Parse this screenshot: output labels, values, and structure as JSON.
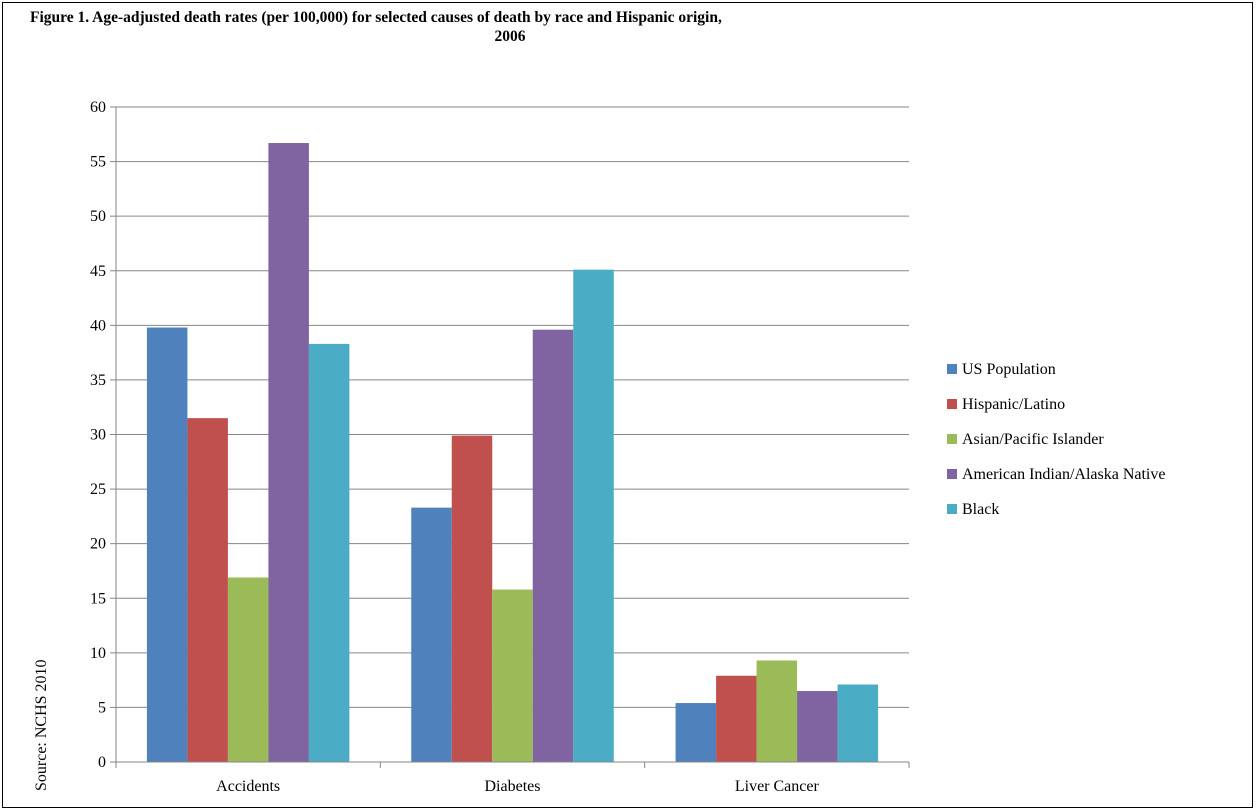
{
  "chart_data": {
    "type": "bar",
    "title_line1": "Figure 1. Age-adjusted death rates (per 100,000) for selected causes of death by race and Hispanic origin,",
    "title_line2": "2006",
    "categories": [
      "Accidents",
      "Diabetes",
      "Liver Cancer"
    ],
    "series": [
      {
        "name": "US Population",
        "color": "#4F81BD",
        "values": [
          39.8,
          23.3,
          5.4
        ]
      },
      {
        "name": "Hispanic/Latino",
        "color": "#C0504D",
        "values": [
          31.5,
          29.9,
          7.9
        ]
      },
      {
        "name": "Asian/Pacific Islander",
        "color": "#9BBB59",
        "values": [
          16.9,
          15.8,
          9.3
        ]
      },
      {
        "name": "American Indian/Alaska Native",
        "color": "#8064A2",
        "values": [
          56.7,
          39.6,
          6.5
        ]
      },
      {
        "name": "Black",
        "color": "#4BACC6",
        "values": [
          38.3,
          45.1,
          7.1
        ]
      }
    ],
    "ylim": [
      0,
      60
    ],
    "yticks": [
      0,
      5,
      10,
      15,
      20,
      25,
      30,
      35,
      40,
      45,
      50,
      55,
      60
    ],
    "grid": true,
    "legend_position": "right",
    "source": "Source: NCHS 2010"
  }
}
